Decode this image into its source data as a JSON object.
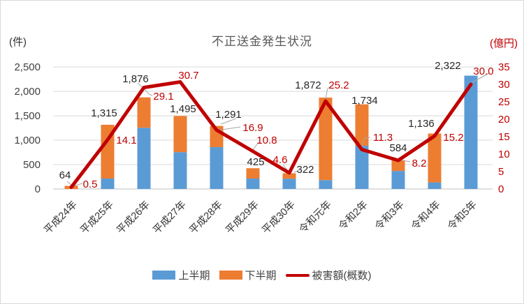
{
  "title": "不正送金発生状況",
  "left_axis_unit": "(件)",
  "right_axis_unit": "(億円)",
  "legend": {
    "first_half": "上半期",
    "second_half": "下半期",
    "damage": "被害額(概数)"
  },
  "colors": {
    "first_half_bar": "#5b9bd5",
    "second_half_bar": "#ed7d31",
    "damage_line": "#c00000",
    "red_text": "#c00000",
    "dark_text": "#262626",
    "axis_text": "#404040",
    "gridline": "#d9d9d9",
    "axis_line": "#bfbfbf",
    "leader_line": "#a6a6a6",
    "title_text": "#595959"
  },
  "chart_data": {
    "type": "bar",
    "subtype": "stacked-bar-with-line",
    "title": "不正送金発生状況",
    "categories": [
      "平成24年",
      "平成25年",
      "平成26年",
      "平成27年",
      "平成28年",
      "平成29年",
      "平成30年",
      "令和元年",
      "令和2年",
      "令和3年",
      "令和4年",
      "令和5年"
    ],
    "series": [
      {
        "name": "上半期",
        "type": "bar",
        "stack": true,
        "axis": "left",
        "values": [
          0,
          214,
          1254,
          754,
          857,
          214,
          211,
          182,
          885,
          370,
          134,
          2322
        ]
      },
      {
        "name": "下半期",
        "type": "bar",
        "stack": true,
        "axis": "left",
        "values": [
          64,
          1101,
          622,
          741,
          434,
          211,
          111,
          1690,
          849,
          214,
          1002,
          0
        ]
      },
      {
        "name": "被害額(概数)",
        "type": "line",
        "axis": "right",
        "values": [
          0.5,
          14.1,
          29.1,
          30.7,
          16.9,
          10.8,
          4.6,
          25.2,
          11.3,
          8.2,
          15.2,
          30.0
        ]
      }
    ],
    "bar_total_labels": [
      "64",
      "1,315",
      "1,876",
      "1,495",
      "1,291",
      "425",
      "322",
      "1,872",
      "1,734",
      "584",
      "1,136",
      "2,322"
    ],
    "line_labels": [
      "0.5",
      "14.1",
      "29.1",
      "30.7",
      "16.9",
      "10.8",
      "4.6",
      "25.2",
      "11.3",
      "8.2",
      "15.2",
      "30.0"
    ],
    "left_axis": {
      "label": "(件)",
      "min": 0,
      "max": 2500,
      "step": 500,
      "ticks": [
        "0",
        "500",
        "1,000",
        "1,500",
        "2,000",
        "2,500"
      ]
    },
    "right_axis": {
      "label": "(億円)",
      "min": 0,
      "max": 35,
      "step": 5,
      "ticks": [
        "0",
        "5",
        "10",
        "15",
        "20",
        "25",
        "30",
        "35"
      ]
    },
    "grid": "horizontal",
    "legend_position": "bottom"
  }
}
